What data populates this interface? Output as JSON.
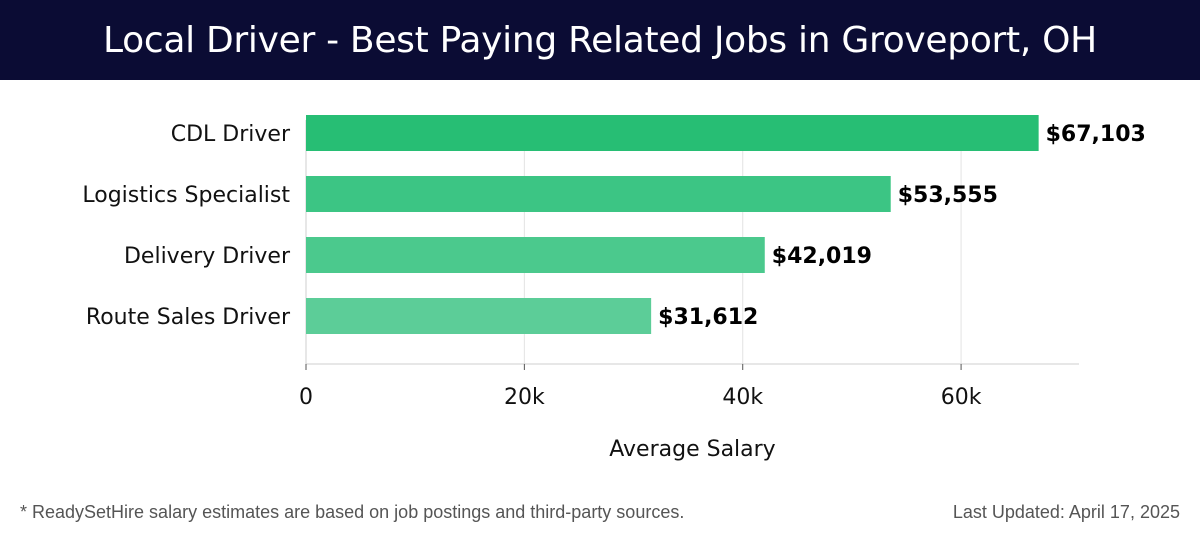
{
  "header": {
    "title": "Local Driver - Best Paying Related Jobs in Groveport, OH"
  },
  "footer": {
    "note": "* ReadySetHire salary estimates are based on job postings and third-party sources.",
    "last_updated": "Last Updated: April 17, 2025"
  },
  "chart_data": {
    "type": "bar",
    "orientation": "horizontal",
    "title": "Local Driver - Best Paying Related Jobs in Groveport, OH",
    "categories": [
      "CDL Driver",
      "Logistics Specialist",
      "Delivery Driver",
      "Route Sales Driver"
    ],
    "values": [
      67103,
      53555,
      42019,
      31612
    ],
    "value_labels": [
      "$67,103",
      "$53,555",
      "$42,019",
      "$31,612"
    ],
    "bar_colors": [
      "#27be74",
      "#3cc584",
      "#4bc98d",
      "#5ccd98"
    ],
    "xlabel": "Average Salary",
    "ylabel": "",
    "xlim": [
      0,
      70800
    ],
    "xticks": [
      0,
      20000,
      40000,
      60000
    ],
    "xtick_labels": [
      "0",
      "20k",
      "40k",
      "60k"
    ],
    "grid": true
  }
}
